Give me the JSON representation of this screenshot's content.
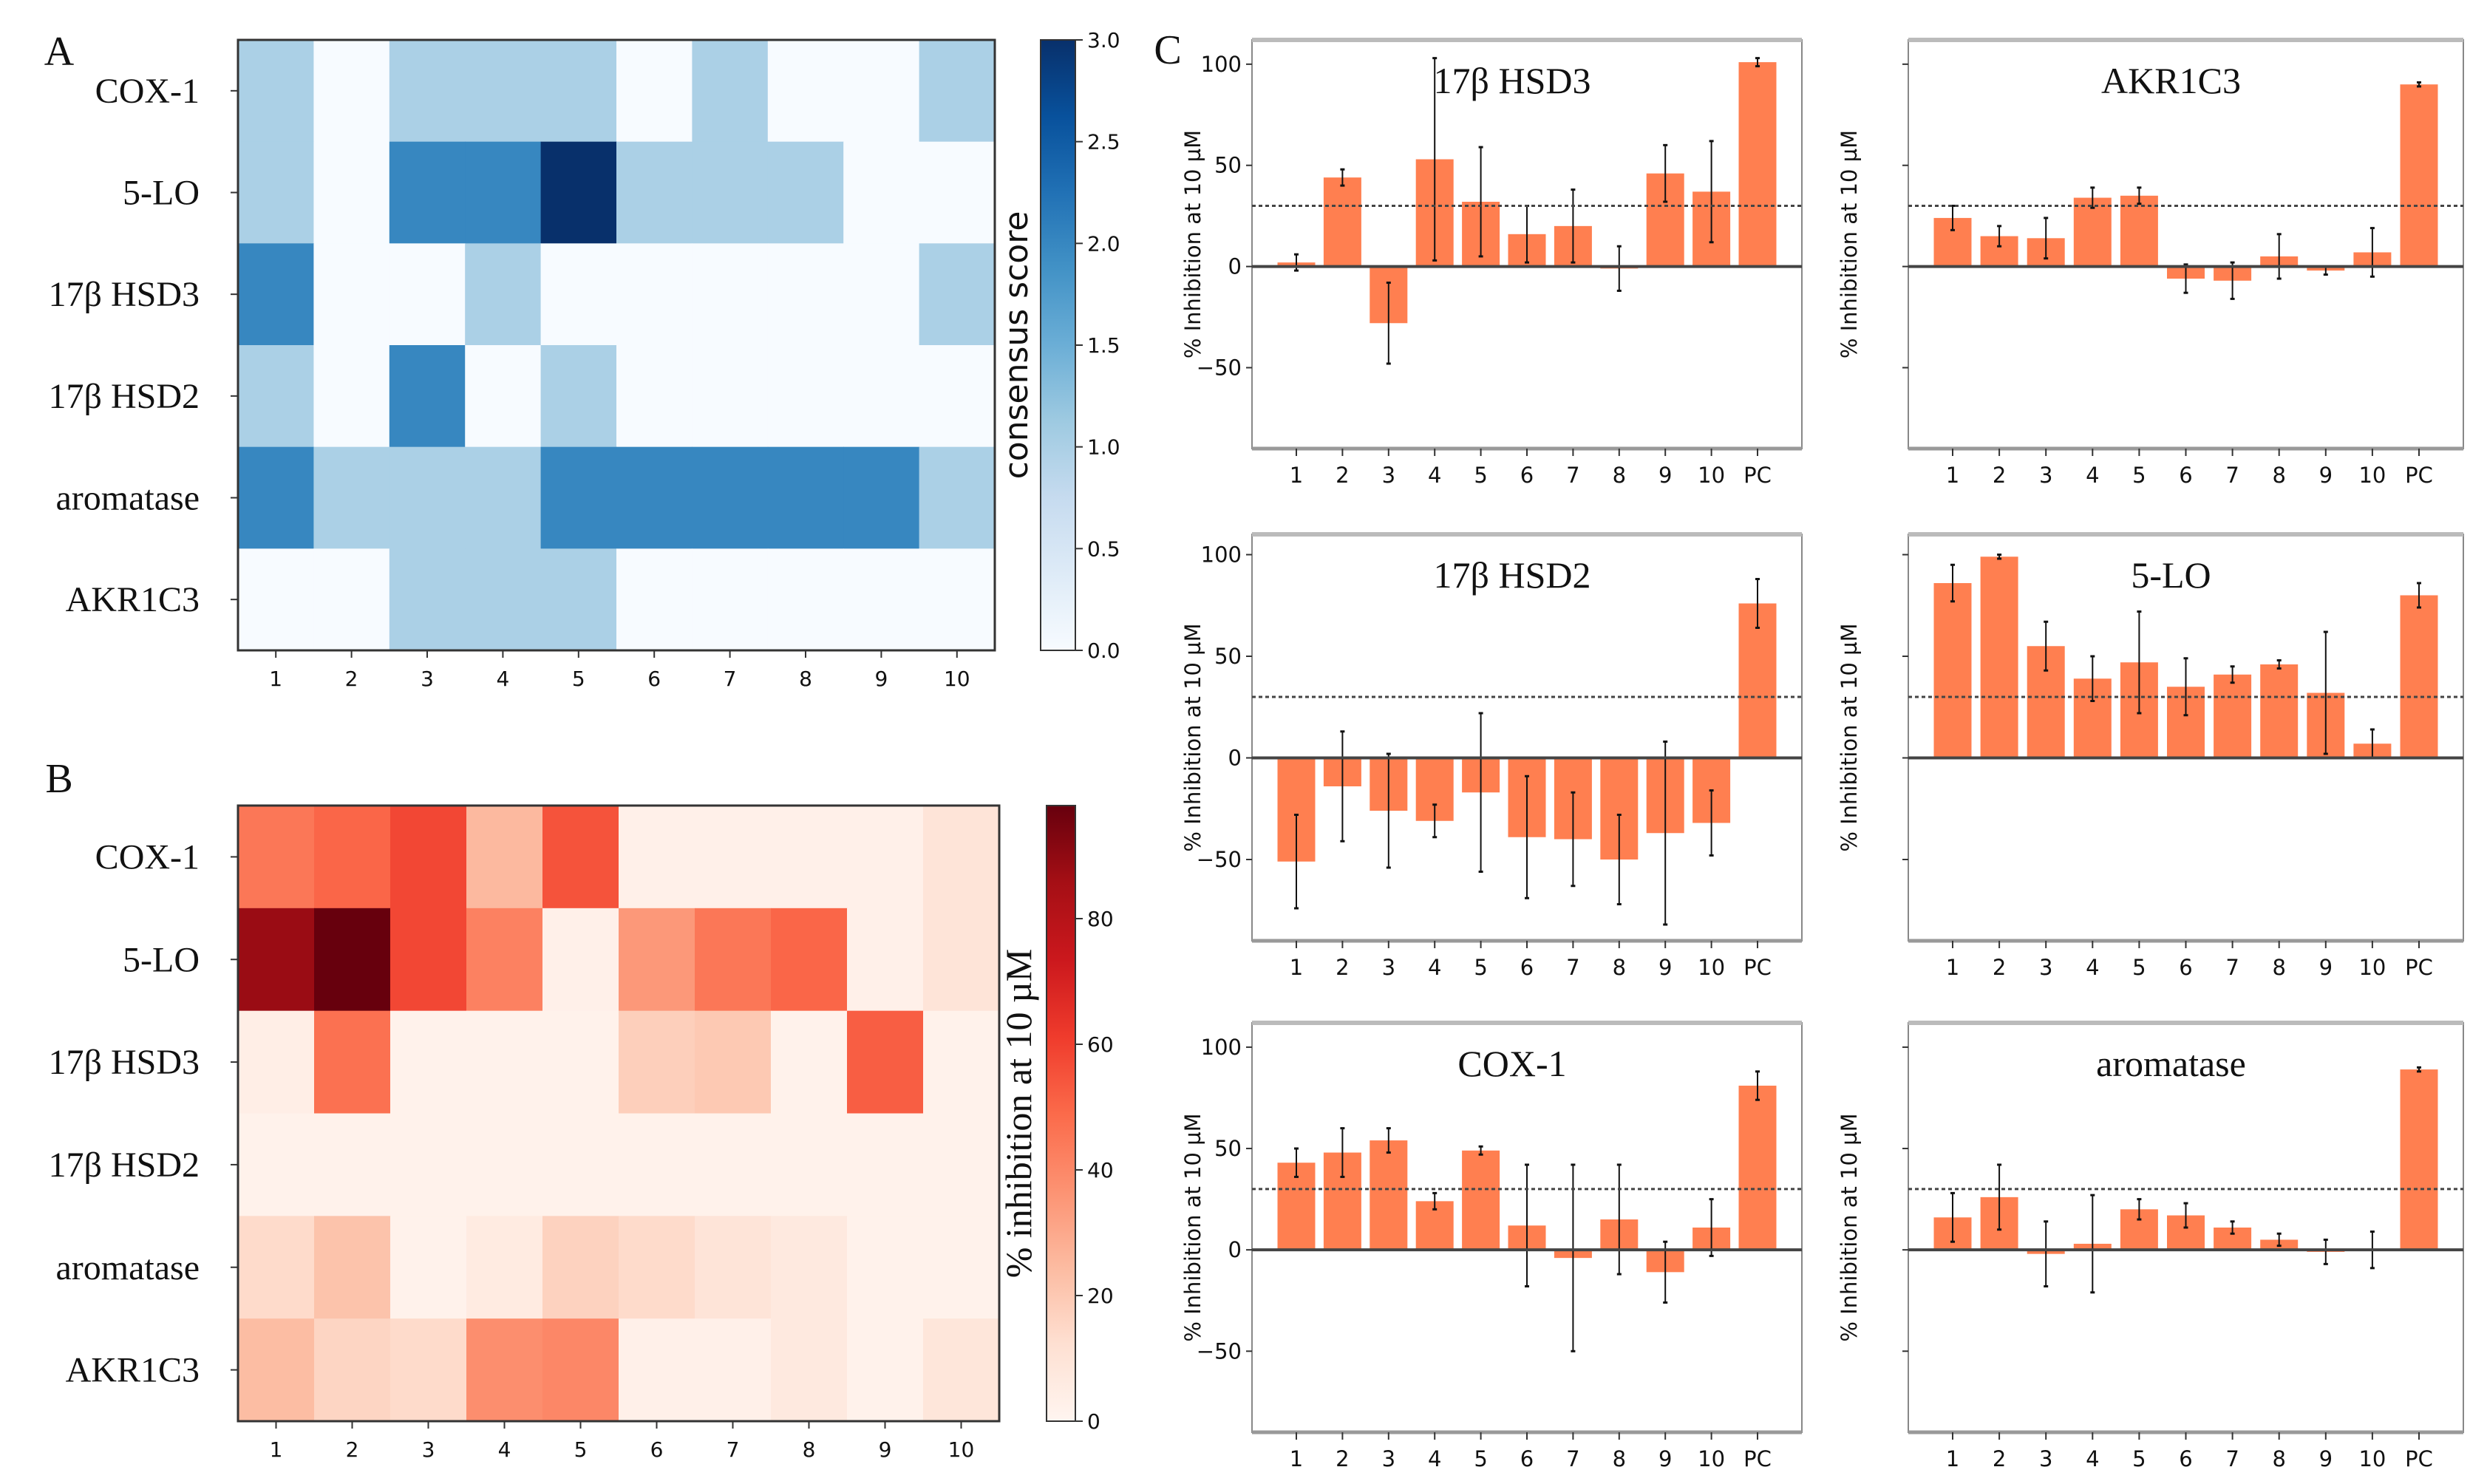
{
  "panel_labels": {
    "a": "A",
    "b": "B",
    "c": "C"
  },
  "chart_data": [
    {
      "type": "heatmap",
      "panel": "A",
      "rows": [
        "COX-1",
        "5-LO",
        "17β HSD3",
        "17β HSD2",
        "aromatase",
        "AKR1C3"
      ],
      "columns": [
        "1",
        "2",
        "3",
        "4",
        "5",
        "6",
        "7",
        "8",
        "9",
        "10"
      ],
      "values": [
        [
          1,
          0,
          1,
          1,
          1,
          0,
          1,
          0,
          0,
          1
        ],
        [
          1,
          0,
          2,
          2,
          3,
          1,
          1,
          1,
          0,
          0
        ],
        [
          2,
          0,
          0,
          1,
          0,
          0,
          0,
          0,
          0,
          1
        ],
        [
          1,
          0,
          2,
          0,
          1,
          0,
          0,
          0,
          0,
          0
        ],
        [
          2,
          1,
          1,
          1,
          2,
          2,
          2,
          2,
          2,
          1
        ],
        [
          0,
          0,
          1,
          1,
          1,
          0,
          0,
          0,
          0,
          0
        ]
      ],
      "colormap": "Blues",
      "vmin": 0,
      "vmax": 3,
      "colorbar_ticks": [
        "0.0",
        "0.5",
        "1.0",
        "1.5",
        "2.0",
        "2.5",
        "3.0"
      ],
      "colorbar_label": "consensus score"
    },
    {
      "type": "heatmap",
      "panel": "B",
      "rows": [
        "COX-1",
        "5-LO",
        "17β HSD3",
        "17β HSD2",
        "aromatase",
        "AKR1C3"
      ],
      "columns": [
        "1",
        "2",
        "3",
        "4",
        "5",
        "6",
        "7",
        "8",
        "9",
        "10"
      ],
      "values": [
        [
          45,
          50,
          58,
          25,
          55,
          3,
          3,
          3,
          3,
          10
        ],
        [
          88,
          99,
          58,
          42,
          3,
          35,
          45,
          50,
          3,
          10
        ],
        [
          4,
          47,
          2,
          2,
          2,
          18,
          20,
          2,
          52,
          2
        ],
        [
          2,
          2,
          2,
          2,
          2,
          2,
          2,
          2,
          2,
          2
        ],
        [
          14,
          22,
          2,
          6,
          17,
          14,
          10,
          7,
          2,
          2
        ],
        [
          24,
          16,
          14,
          38,
          40,
          3,
          3,
          7,
          2,
          9
        ]
      ],
      "colormap": "Reds",
      "vmin": 0,
      "vmax": 98,
      "colorbar_ticks": [
        "0",
        "20",
        "40",
        "60",
        "80"
      ],
      "colorbar_label": "% inhibition at 10 µM"
    },
    {
      "type": "bar",
      "panel": "C",
      "title": "17β HSD3",
      "categories": [
        "1",
        "2",
        "3",
        "4",
        "5",
        "6",
        "7",
        "8",
        "9",
        "10",
        "PC"
      ],
      "values": [
        2,
        44,
        -28,
        53,
        32,
        16,
        20,
        -1,
        46,
        37,
        101
      ],
      "errors": [
        4,
        4,
        20,
        50,
        27,
        14,
        18,
        11,
        14,
        25,
        2
      ],
      "ylabel": "% Inhibition at 10 µM",
      "ylim": [
        -90,
        112
      ],
      "yticks": [
        "100",
        "50",
        "0",
        "−50"
      ],
      "threshold": 30
    },
    {
      "type": "bar",
      "panel": "C",
      "title": "AKR1C3",
      "categories": [
        "1",
        "2",
        "3",
        "4",
        "5",
        "6",
        "7",
        "8",
        "9",
        "10",
        "PC"
      ],
      "values": [
        24,
        15,
        14,
        34,
        35,
        -6,
        -7,
        5,
        -2,
        7,
        90
      ],
      "errors": [
        6,
        5,
        10,
        5,
        4,
        7,
        9,
        11,
        2,
        12,
        1
      ],
      "ylabel": "% Inhibition at 10 µM",
      "ylim": [
        -90,
        112
      ],
      "yticks": [],
      "threshold": 30
    },
    {
      "type": "bar",
      "panel": "C",
      "title": "17β HSD2",
      "categories": [
        "1",
        "2",
        "3",
        "4",
        "5",
        "6",
        "7",
        "8",
        "9",
        "10",
        "PC"
      ],
      "values": [
        -51,
        -14,
        -26,
        -31,
        -17,
        -39,
        -40,
        -50,
        -37,
        -32,
        76
      ],
      "errors": [
        23,
        27,
        28,
        8,
        39,
        30,
        23,
        22,
        45,
        16,
        12
      ],
      "ylabel": "% Inhibition at 10 µM",
      "ylim": [
        -90,
        110
      ],
      "yticks": [
        "100",
        "50",
        "0",
        "−50"
      ],
      "threshold": 30
    },
    {
      "type": "bar",
      "panel": "C",
      "title": "5-LO",
      "categories": [
        "1",
        "2",
        "3",
        "4",
        "5",
        "6",
        "7",
        "8",
        "9",
        "10",
        "PC"
      ],
      "values": [
        86,
        99,
        55,
        39,
        47,
        35,
        41,
        46,
        32,
        7,
        80
      ],
      "errors": [
        9,
        1,
        12,
        11,
        25,
        14,
        4,
        2,
        30,
        7,
        6
      ],
      "ylabel": "% Inhibition at 10 µM",
      "ylim": [
        -90,
        110
      ],
      "yticks": [],
      "threshold": 30
    },
    {
      "type": "bar",
      "panel": "C",
      "title": "COX-1",
      "categories": [
        "1",
        "2",
        "3",
        "4",
        "5",
        "6",
        "7",
        "8",
        "9",
        "10",
        "PC"
      ],
      "values": [
        43,
        48,
        54,
        24,
        49,
        12,
        -4,
        15,
        -11,
        11,
        81
      ],
      "errors": [
        7,
        12,
        6,
        4,
        2,
        30,
        46,
        27,
        15,
        14,
        7
      ],
      "ylabel": "% Inhibition at 10 µM",
      "ylim": [
        -90,
        112
      ],
      "yticks": [
        "100",
        "50",
        "0",
        "−50"
      ],
      "threshold": 30
    },
    {
      "type": "bar",
      "panel": "C",
      "title": "aromatase",
      "categories": [
        "1",
        "2",
        "3",
        "4",
        "5",
        "6",
        "7",
        "8",
        "9",
        "10",
        "PC"
      ],
      "values": [
        16,
        26,
        -2,
        3,
        20,
        17,
        11,
        5,
        -1,
        0,
        89
      ],
      "errors": [
        12,
        16,
        16,
        24,
        5,
        6,
        3,
        3,
        6,
        9,
        1
      ],
      "ylabel": "% Inhibition at 10 µM",
      "ylim": [
        -90,
        112
      ],
      "yticks": [],
      "threshold": 30
    }
  ],
  "colors": {
    "bar": "#ff7f50",
    "axis": "#333333",
    "dark": "#000000"
  }
}
